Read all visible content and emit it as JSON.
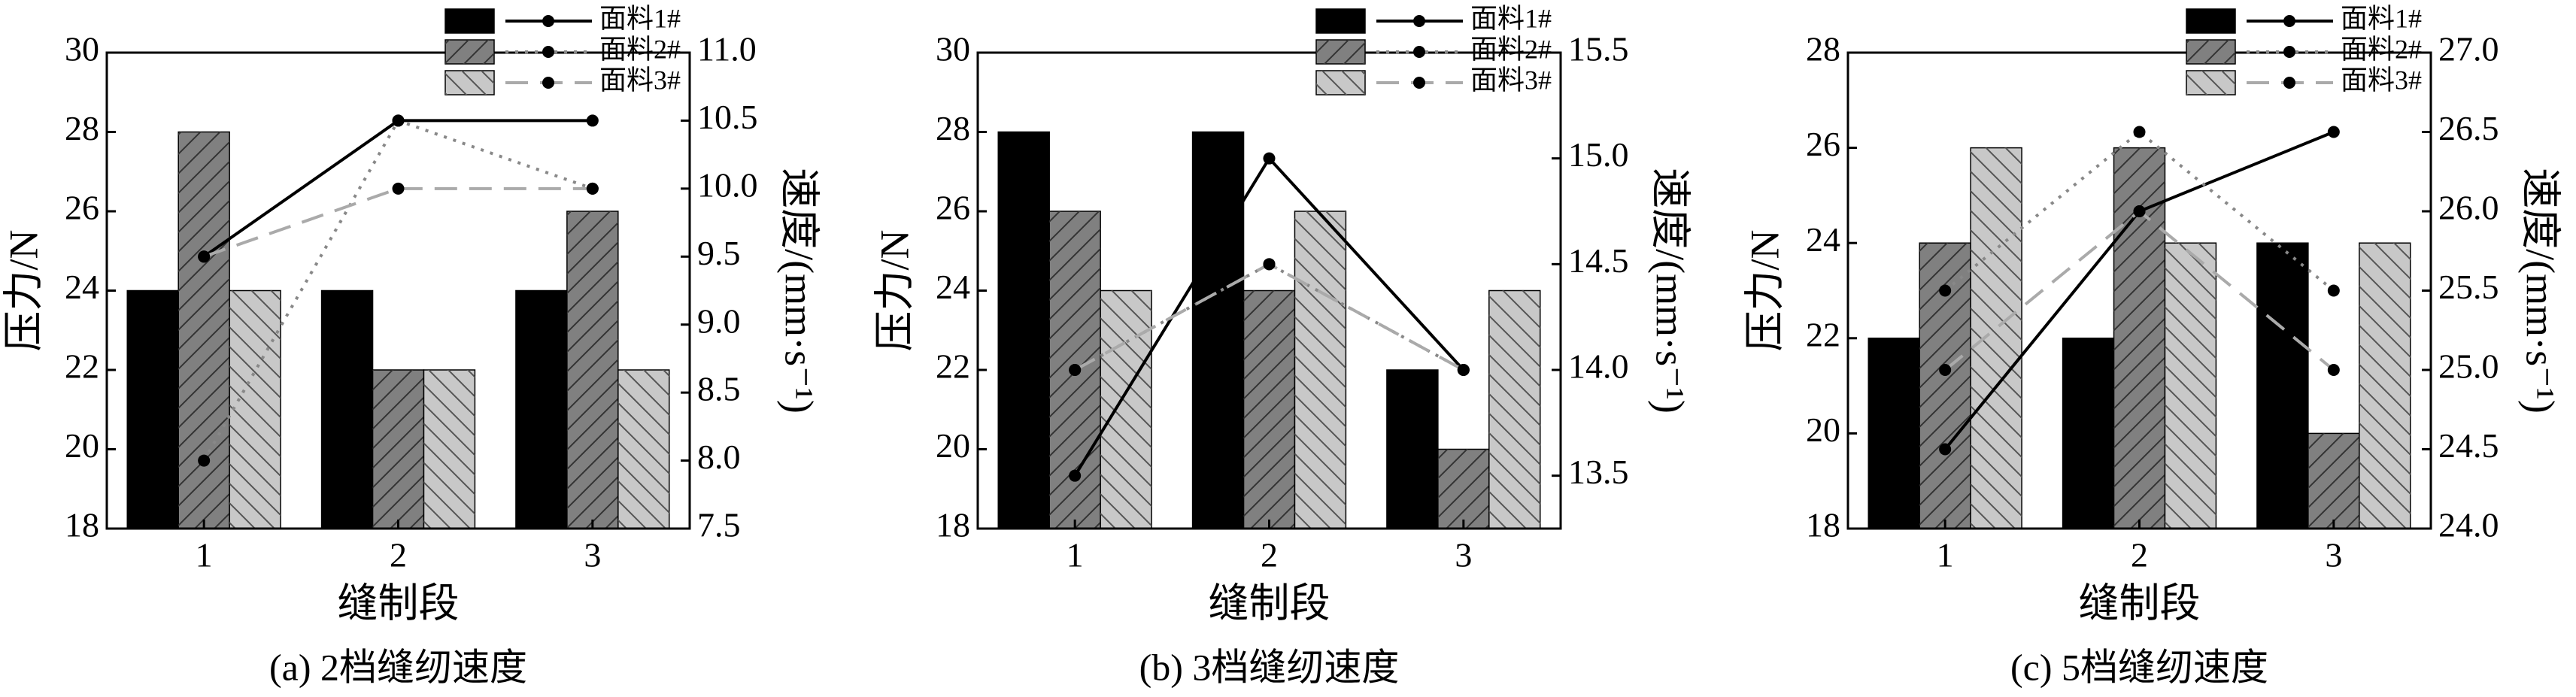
{
  "chart_data": [
    {
      "type": "bar_line",
      "caption": "(a) 2档缝纫速度",
      "xlabel": "缝制段",
      "ylabel": "压力/N",
      "y2label": "速度/(mm·s⁻¹)",
      "categories": [
        "1",
        "2",
        "3"
      ],
      "ylim": [
        18,
        30
      ],
      "yticks": [
        18,
        20,
        22,
        24,
        26,
        28,
        30
      ],
      "y2lim": [
        7.5,
        11
      ],
      "y2ticks": [
        7.5,
        {
          "value": 8,
          "label": "8.0"
        },
        8.5,
        {
          "value": 9,
          "label": "9.0"
        },
        9.5,
        {
          "value": 10,
          "label": "10.0"
        },
        10.5,
        {
          "value": 11,
          "label": "11.0"
        }
      ],
      "legend": "upper right",
      "series": [
        {
          "name": "面料1#",
          "color": "#000000",
          "hatch": "none",
          "line_color": "#000000",
          "line_style": "solid",
          "values": [
            24,
            24,
            24
          ],
          "y2_values": [
            9.5,
            10.5,
            10.5
          ]
        },
        {
          "name": "面料2#",
          "color": "#808080",
          "hatch": "forward",
          "line_color": "#888888",
          "line_style": "dotted",
          "values": [
            28,
            22,
            26
          ],
          "y2_values": [
            8,
            10.5,
            10
          ]
        },
        {
          "name": "面料3#",
          "color": "#c8c8c8",
          "hatch": "backward",
          "line_color": "#aaaaaa",
          "line_style": "dashed",
          "values": [
            24,
            22,
            22
          ],
          "y2_values": [
            9.5,
            10,
            10
          ]
        }
      ]
    },
    {
      "type": "bar_line",
      "caption": "(b) 3档缝纫速度",
      "xlabel": "缝制段",
      "ylabel": "压力/N",
      "y2label": "速度/(mm·s⁻¹)",
      "categories": [
        "1",
        "2",
        "3"
      ],
      "ylim": [
        18,
        30
      ],
      "yticks": [
        18,
        20,
        22,
        24,
        26,
        28,
        30
      ],
      "y2lim": [
        13.25,
        15.5
      ],
      "y2ticks": [
        13.5,
        {
          "value": 14,
          "label": "14.0"
        },
        14.5,
        {
          "value": 15,
          "label": "15.0"
        },
        15.5
      ],
      "legend": "upper right",
      "series": [
        {
          "name": "面料1#",
          "color": "#000000",
          "hatch": "none",
          "line_color": "#000000",
          "line_style": "solid",
          "values": [
            28,
            28,
            22
          ],
          "y2_values": [
            13.5,
            15,
            14
          ]
        },
        {
          "name": "面料2#",
          "color": "#808080",
          "hatch": "forward",
          "line_color": "#888888",
          "line_style": "dotted",
          "values": [
            26,
            24,
            20
          ],
          "y2_values": [
            14,
            14.5,
            14
          ]
        },
        {
          "name": "面料3#",
          "color": "#c8c8c8",
          "hatch": "backward",
          "line_color": "#aaaaaa",
          "line_style": "dashed",
          "values": [
            24,
            26,
            24
          ],
          "y2_values": [
            14,
            14.5,
            14
          ]
        }
      ]
    },
    {
      "type": "bar_line",
      "caption": "(c) 5档缝纫速度",
      "xlabel": "缝制段",
      "ylabel": "压力/N",
      "y2label": "速度/(mm·s⁻¹)",
      "categories": [
        "1",
        "2",
        "3"
      ],
      "ylim": [
        18,
        28
      ],
      "yticks": [
        18,
        20,
        22,
        24,
        26,
        28
      ],
      "y2lim": [
        24,
        27
      ],
      "y2ticks": [
        {
          "value": 24,
          "label": "24.0"
        },
        24.5,
        {
          "value": 25,
          "label": "25.0"
        },
        25.5,
        {
          "value": 26,
          "label": "26.0"
        },
        26.5,
        {
          "value": 27,
          "label": "27.0"
        }
      ],
      "legend": "upper right",
      "series": [
        {
          "name": "面料1#",
          "color": "#000000",
          "hatch": "none",
          "line_color": "#000000",
          "line_style": "solid",
          "values": [
            22,
            22,
            24
          ],
          "y2_values": [
            24.5,
            26,
            26.5
          ]
        },
        {
          "name": "面料2#",
          "color": "#808080",
          "hatch": "forward",
          "line_color": "#888888",
          "line_style": "dotted",
          "values": [
            24,
            26,
            20
          ],
          "y2_values": [
            25.5,
            26.5,
            25.5
          ]
        },
        {
          "name": "面料3#",
          "color": "#c8c8c8",
          "hatch": "backward",
          "line_color": "#aaaaaa",
          "line_style": "dashed",
          "values": [
            26,
            24,
            24
          ],
          "y2_values": [
            25,
            26,
            25
          ]
        }
      ]
    }
  ]
}
